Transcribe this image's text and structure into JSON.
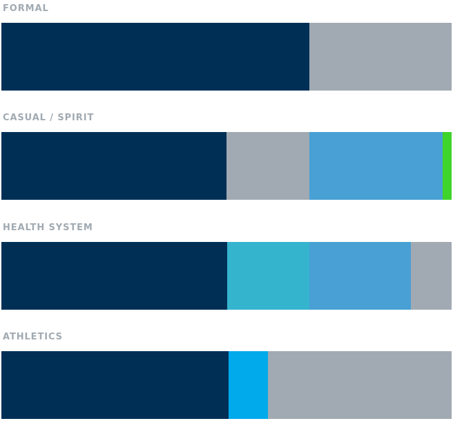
{
  "palettes": [
    {
      "label": "FORMAL",
      "segments": [
        {
          "color": "#002f56",
          "share": 0.684
        },
        {
          "color": "#a1aab2",
          "share": 0.316
        }
      ]
    },
    {
      "label": "CASUAL / SPIRIT",
      "segments": [
        {
          "color": "#002f56",
          "share": 0.5
        },
        {
          "color": "#a1aab2",
          "share": 0.184
        },
        {
          "color": "#48a0d4",
          "share": 0.296
        },
        {
          "color": "#3fd42c",
          "share": 0.02
        }
      ]
    },
    {
      "label": "HEALTH SYSTEM",
      "segments": [
        {
          "color": "#002f56",
          "share": 0.502
        },
        {
          "color": "#35b4ce",
          "share": 0.182
        },
        {
          "color": "#48a0d4",
          "share": 0.226
        },
        {
          "color": "#a1aab2",
          "share": 0.09
        }
      ]
    },
    {
      "label": "ATHLETICS",
      "segments": [
        {
          "color": "#002f56",
          "share": 0.505
        },
        {
          "color": "#00aaeb",
          "share": 0.088
        },
        {
          "color": "#a1aab2",
          "share": 0.407
        }
      ]
    }
  ]
}
